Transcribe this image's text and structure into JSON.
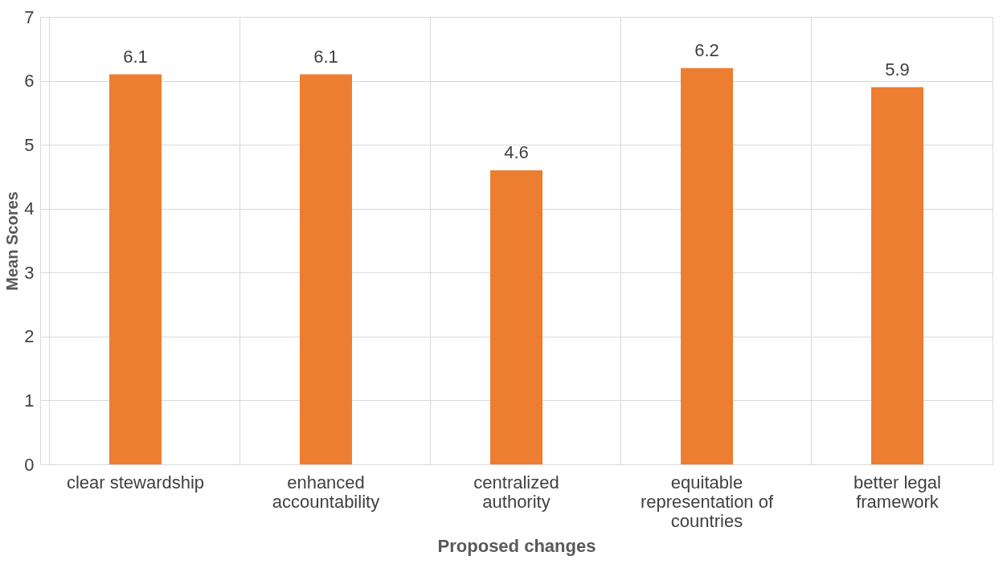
{
  "chart_data": {
    "type": "bar",
    "xlabel": "Proposed changes",
    "ylabel": "Mean Scores",
    "categories": [
      "clear stewardship",
      "enhanced accountability",
      "centralized authority",
      "equitable representation of countries",
      "better legal framework"
    ],
    "values": [
      6.1,
      6.1,
      4.6,
      6.2,
      5.9
    ],
    "color": "#ed7d31",
    "ylim": [
      0,
      7
    ],
    "yticks": [
      0,
      1,
      2,
      3,
      4,
      5,
      6,
      7
    ],
    "grid": true,
    "data_labels": true
  }
}
